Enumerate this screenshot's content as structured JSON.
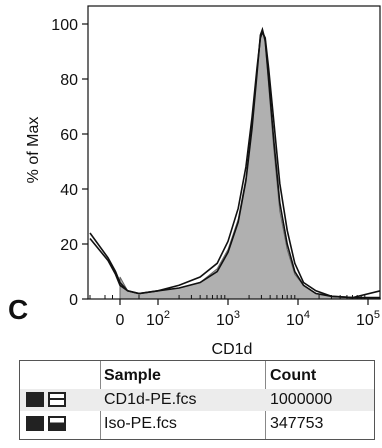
{
  "chart_data": {
    "type": "area",
    "xlabel": "CD1d",
    "ylabel": "% of Max",
    "ylim": [
      0,
      100
    ],
    "yticks": [
      "0",
      "20",
      "40",
      "60",
      "80",
      "100"
    ],
    "xticks": [
      {
        "base": "0",
        "exp": ""
      },
      {
        "base": "10",
        "exp": "2"
      },
      {
        "base": "10",
        "exp": "3"
      },
      {
        "base": "10",
        "exp": "4"
      },
      {
        "base": "10",
        "exp": "5"
      }
    ],
    "series": [
      {
        "fill": "#b0b0b0",
        "x": [
          0,
          20,
          50,
          100,
          200,
          400,
          700,
          1000,
          1400,
          1800,
          2200,
          2600,
          2900,
          3100,
          3400,
          3800,
          4500,
          5500,
          7000,
          9000,
          12000,
          18000,
          30000,
          60000,
          150000
        ],
        "y": [
          8,
          3,
          2,
          3,
          4,
          6,
          11,
          18,
          29,
          44,
          63,
          83,
          96,
          98,
          93,
          78,
          55,
          32,
          18,
          9,
          5,
          2,
          1,
          0.5,
          0.3
        ]
      },
      {
        "x": [
          -200,
          -80,
          -30,
          0,
          20,
          50,
          100,
          200,
          400,
          700,
          1000,
          1400,
          1800,
          2200,
          2600,
          2900,
          3100,
          3400,
          3800,
          4500,
          5500,
          7000,
          9000,
          12000,
          18000,
          30000,
          60000,
          150000
        ],
        "y": [
          22,
          14,
          9,
          5,
          3,
          2,
          3,
          4,
          6,
          10,
          17,
          28,
          43,
          62,
          82,
          96,
          98,
          94,
          80,
          58,
          35,
          20,
          10,
          5,
          2,
          1,
          0.5,
          0.5
        ]
      },
      {
        "x": [
          -200,
          -80,
          -30,
          0,
          20,
          50,
          100,
          200,
          400,
          700,
          1000,
          1400,
          1800,
          2200,
          2600,
          2900,
          3100,
          3400,
          3800,
          4500,
          5500,
          7000,
          9000,
          12000,
          18000,
          30000,
          60000,
          150000
        ],
        "y": [
          24,
          15,
          10,
          6,
          3,
          2,
          3,
          5,
          8,
          13,
          21,
          33,
          48,
          66,
          84,
          95,
          97,
          95,
          84,
          65,
          42,
          25,
          13,
          6,
          3,
          1,
          0.5,
          3
        ]
      }
    ]
  },
  "panel_letter": "C",
  "legend": {
    "headers": {
      "sample": "Sample",
      "count": "Count"
    },
    "rows": [
      {
        "sample": "CD1d-PE.fcs",
        "count": "1000000"
      },
      {
        "sample": "Iso-PE.fcs",
        "count": "347753"
      }
    ]
  }
}
